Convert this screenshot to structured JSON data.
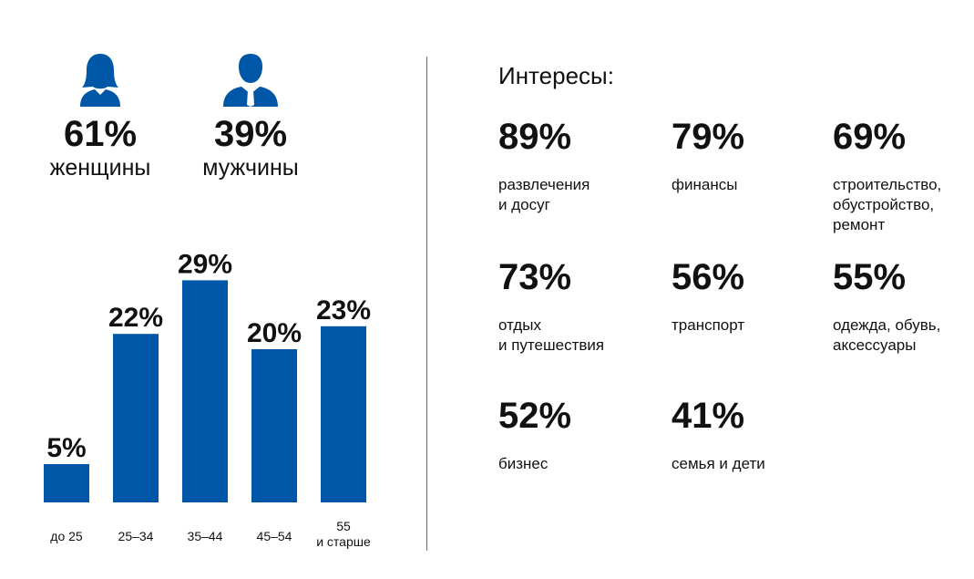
{
  "gender": {
    "female": {
      "percent": "61%",
      "label": "женщины",
      "icon": "woman-icon"
    },
    "male": {
      "percent": "39%",
      "label": "мужчины",
      "icon": "man-icon"
    }
  },
  "chart_data": {
    "type": "bar",
    "categories": [
      "до 25",
      "25–34",
      "35–44",
      "45–54",
      "55\nи старше"
    ],
    "values": [
      5,
      22,
      29,
      20,
      23
    ],
    "data_labels": [
      "5%",
      "22%",
      "29%",
      "20%",
      "23%"
    ],
    "title": "",
    "xlabel": "",
    "ylabel": "",
    "ylim": [
      0,
      30
    ],
    "grid": false,
    "colors": {
      "bar": "#0057a8"
    }
  },
  "interests": {
    "title": "Интересы:",
    "items": [
      {
        "percent": "89%",
        "label": "развлечения\nи досуг"
      },
      {
        "percent": "79%",
        "label": "финансы"
      },
      {
        "percent": "69%",
        "label": "строительство,\nобустройство,\nремонт"
      },
      {
        "percent": "73%",
        "label": "отдых\nи путешествия"
      },
      {
        "percent": "56%",
        "label": "транспорт"
      },
      {
        "percent": "55%",
        "label": "одежда, обувь,\nаксессуары"
      },
      {
        "percent": "52%",
        "label": "бизнес"
      },
      {
        "percent": "41%",
        "label": "семья и дети"
      }
    ]
  },
  "colors": {
    "accent": "#0057a8",
    "text": "#111111",
    "divider": "#6f6f6f"
  }
}
